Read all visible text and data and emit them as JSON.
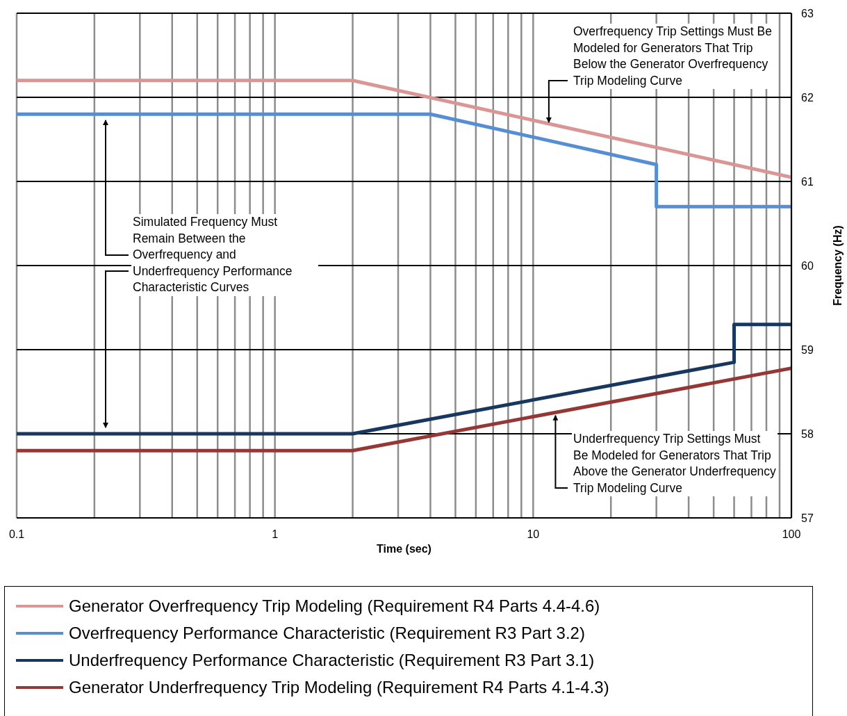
{
  "chart_data": {
    "type": "line",
    "xlabel": "Time (sec)",
    "ylabel": "Frequency (Hz)",
    "log": "x",
    "xlim": [
      0.1,
      100
    ],
    "xticks": [
      0.1,
      {
        "value": 0.2,
        "label": null
      },
      {
        "value": 0.3,
        "label": null
      },
      {
        "value": 0.4,
        "label": null
      },
      {
        "value": 0.5,
        "label": null
      },
      {
        "value": 0.6,
        "label": null
      },
      {
        "value": 0.7,
        "label": null
      },
      {
        "value": 0.8,
        "label": null
      },
      {
        "value": 0.9,
        "label": null
      },
      1,
      {
        "value": 2,
        "label": null
      },
      {
        "value": 3,
        "label": null
      },
      {
        "value": 4,
        "label": null
      },
      {
        "value": 5,
        "label": null
      },
      {
        "value": 6,
        "label": null
      },
      {
        "value": 7,
        "label": null
      },
      {
        "value": 8,
        "label": null
      },
      {
        "value": 9,
        "label": null
      },
      10,
      {
        "value": 20,
        "label": null
      },
      {
        "value": 30,
        "label": null
      },
      {
        "value": 40,
        "label": null
      },
      {
        "value": 50,
        "label": null
      },
      {
        "value": 60,
        "label": null
      },
      {
        "value": 70,
        "label": null
      },
      {
        "value": 80,
        "label": null
      },
      {
        "value": 90,
        "label": null
      },
      100
    ],
    "ylim": [
      57,
      63
    ],
    "yticks": [
      57,
      58,
      59,
      60,
      61,
      62,
      63
    ],
    "grid": true,
    "legend": "bottom",
    "marker": "none",
    "line_style": "solid",
    "series": [
      {
        "name": "Generator Overfrequency Trip Modeling (Requirement R4 Parts 4.4-4.6)",
        "color": "#d99694",
        "x": [
          0.1,
          2,
          100
        ],
        "values": [
          62.2,
          62.2,
          61.05
        ]
      },
      {
        "name": "Overfrequency Performance Characteristic (Requirement R3 Part 3.2)",
        "color": "#558ed5",
        "x": [
          0.1,
          4,
          30,
          30,
          100
        ],
        "values": [
          61.8,
          61.8,
          61.2,
          60.7,
          60.7
        ]
      },
      {
        "name": "Underfrequency Performance Characteristic (Requirement R3 Part 3.1)",
        "color": "#17375e",
        "x": [
          0.1,
          2,
          60,
          60,
          100
        ],
        "values": [
          58,
          58,
          58.85,
          59.3,
          59.3
        ]
      },
      {
        "name": "Generator Underfrequency Trip Modeling (Requirement R4 Parts 4.1-4.3)",
        "color": "#953735",
        "x": [
          0.1,
          2,
          100
        ],
        "values": [
          57.8,
          57.8,
          58.78
        ]
      }
    ],
    "annotations": [
      {
        "text": "Overfrequency Trip Settings Must Be Modeled for Generators That Trip Below the Generator Overfrequency Trip Modeling Curve",
        "x": 11.5,
        "y": 61.67
      },
      "Simulated Frequency Must Remain Between the Overfrequency and Underfrequency Performance Characteristic Curves",
      {
        "text": "Underfrequency Trip Settings Must Be Modeled for Generators That Trip Above the Generator Underfrequency Trip Modeling Curve",
        "x": 12.2,
        "y": 58.25
      }
    ]
  }
}
